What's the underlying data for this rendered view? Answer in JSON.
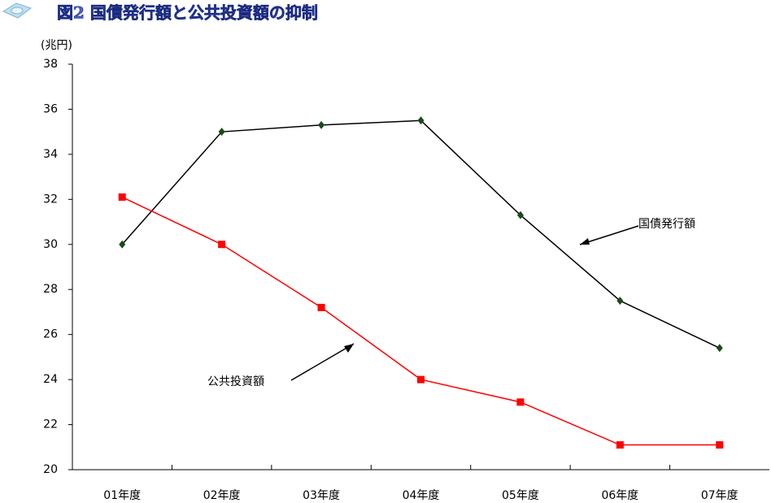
{
  "chart_data": {
    "type": "line",
    "title": "図2 国債発行額と公共投資額の抑制",
    "y_unit": "(兆円)",
    "categories": [
      "01年度",
      "02年度",
      "03年度",
      "04年度",
      "05年度",
      "06年度",
      "07年度"
    ],
    "series": [
      {
        "name": "国債発行額",
        "color": "#000000",
        "marker_color": "#1a4a1a",
        "marker": "diamond",
        "values": [
          30.0,
          35.0,
          35.3,
          35.5,
          31.3,
          27.5,
          25.4
        ]
      },
      {
        "name": "公共投資額",
        "color": "#ff0000",
        "marker_color": "#ff0000",
        "marker": "square",
        "values": [
          32.1,
          30.0,
          27.2,
          24.0,
          23.0,
          21.1,
          21.1
        ]
      }
    ],
    "ylim": [
      20,
      38
    ],
    "yticks": [
      20,
      22,
      24,
      26,
      28,
      30,
      32,
      34,
      36,
      38
    ],
    "grid": false
  }
}
